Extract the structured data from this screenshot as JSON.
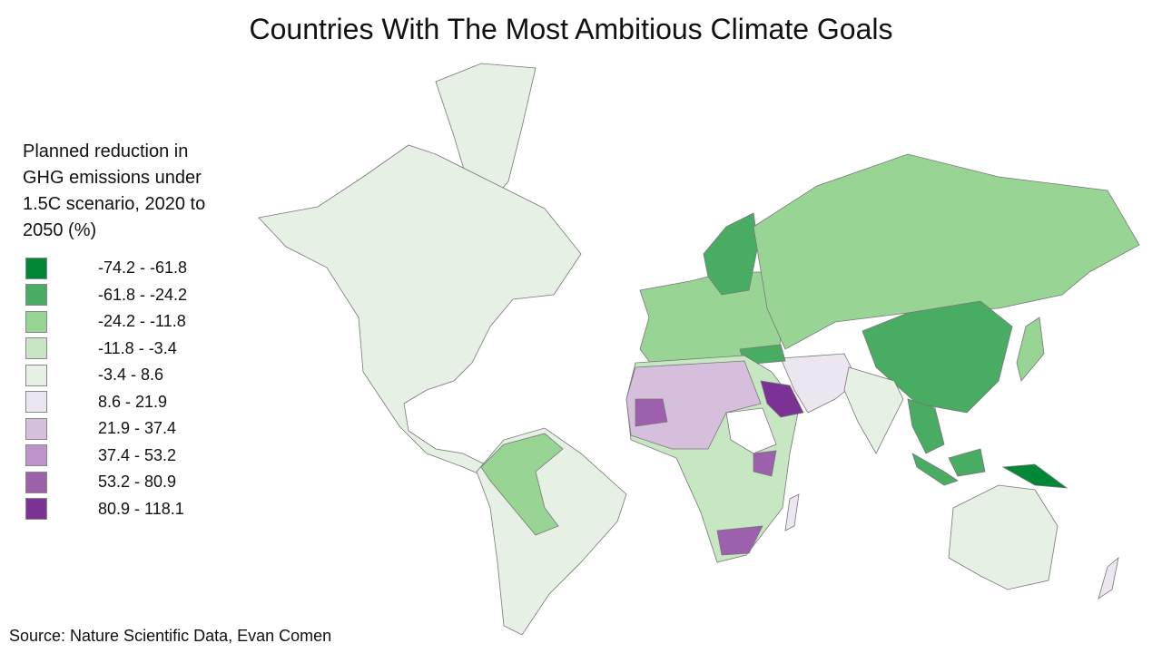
{
  "title": "Countries With The Most Ambitious Climate Goals",
  "legend": {
    "title": "Planned reduction in GHG emissions under 1.5C scenario, 2020 to 2050 (%)",
    "items": [
      {
        "label": "-74.2 - -61.8",
        "color": "#008837"
      },
      {
        "label": "-61.8 - -24.2",
        "color": "#48ac62"
      },
      {
        "label": "-24.2 - -11.8",
        "color": "#98d594"
      },
      {
        "label": "-11.8 - -3.4",
        "color": "#c6e7c2"
      },
      {
        "label": "-3.4 - 8.6",
        "color": "#e6f0e4"
      },
      {
        "label": "8.6 - 21.9",
        "color": "#ece6f0"
      },
      {
        "label": "21.9 - 37.4",
        "color": "#d6bfdc"
      },
      {
        "label": "37.4 - 53.2",
        "color": "#bc94c9"
      },
      {
        "label": "53.2 - 80.9",
        "color": "#9c60ad"
      },
      {
        "label": "80.9 - 118.1",
        "color": "#7b3294"
      }
    ]
  },
  "source": "Source: Nature Scientific Data, Evan Comen"
}
